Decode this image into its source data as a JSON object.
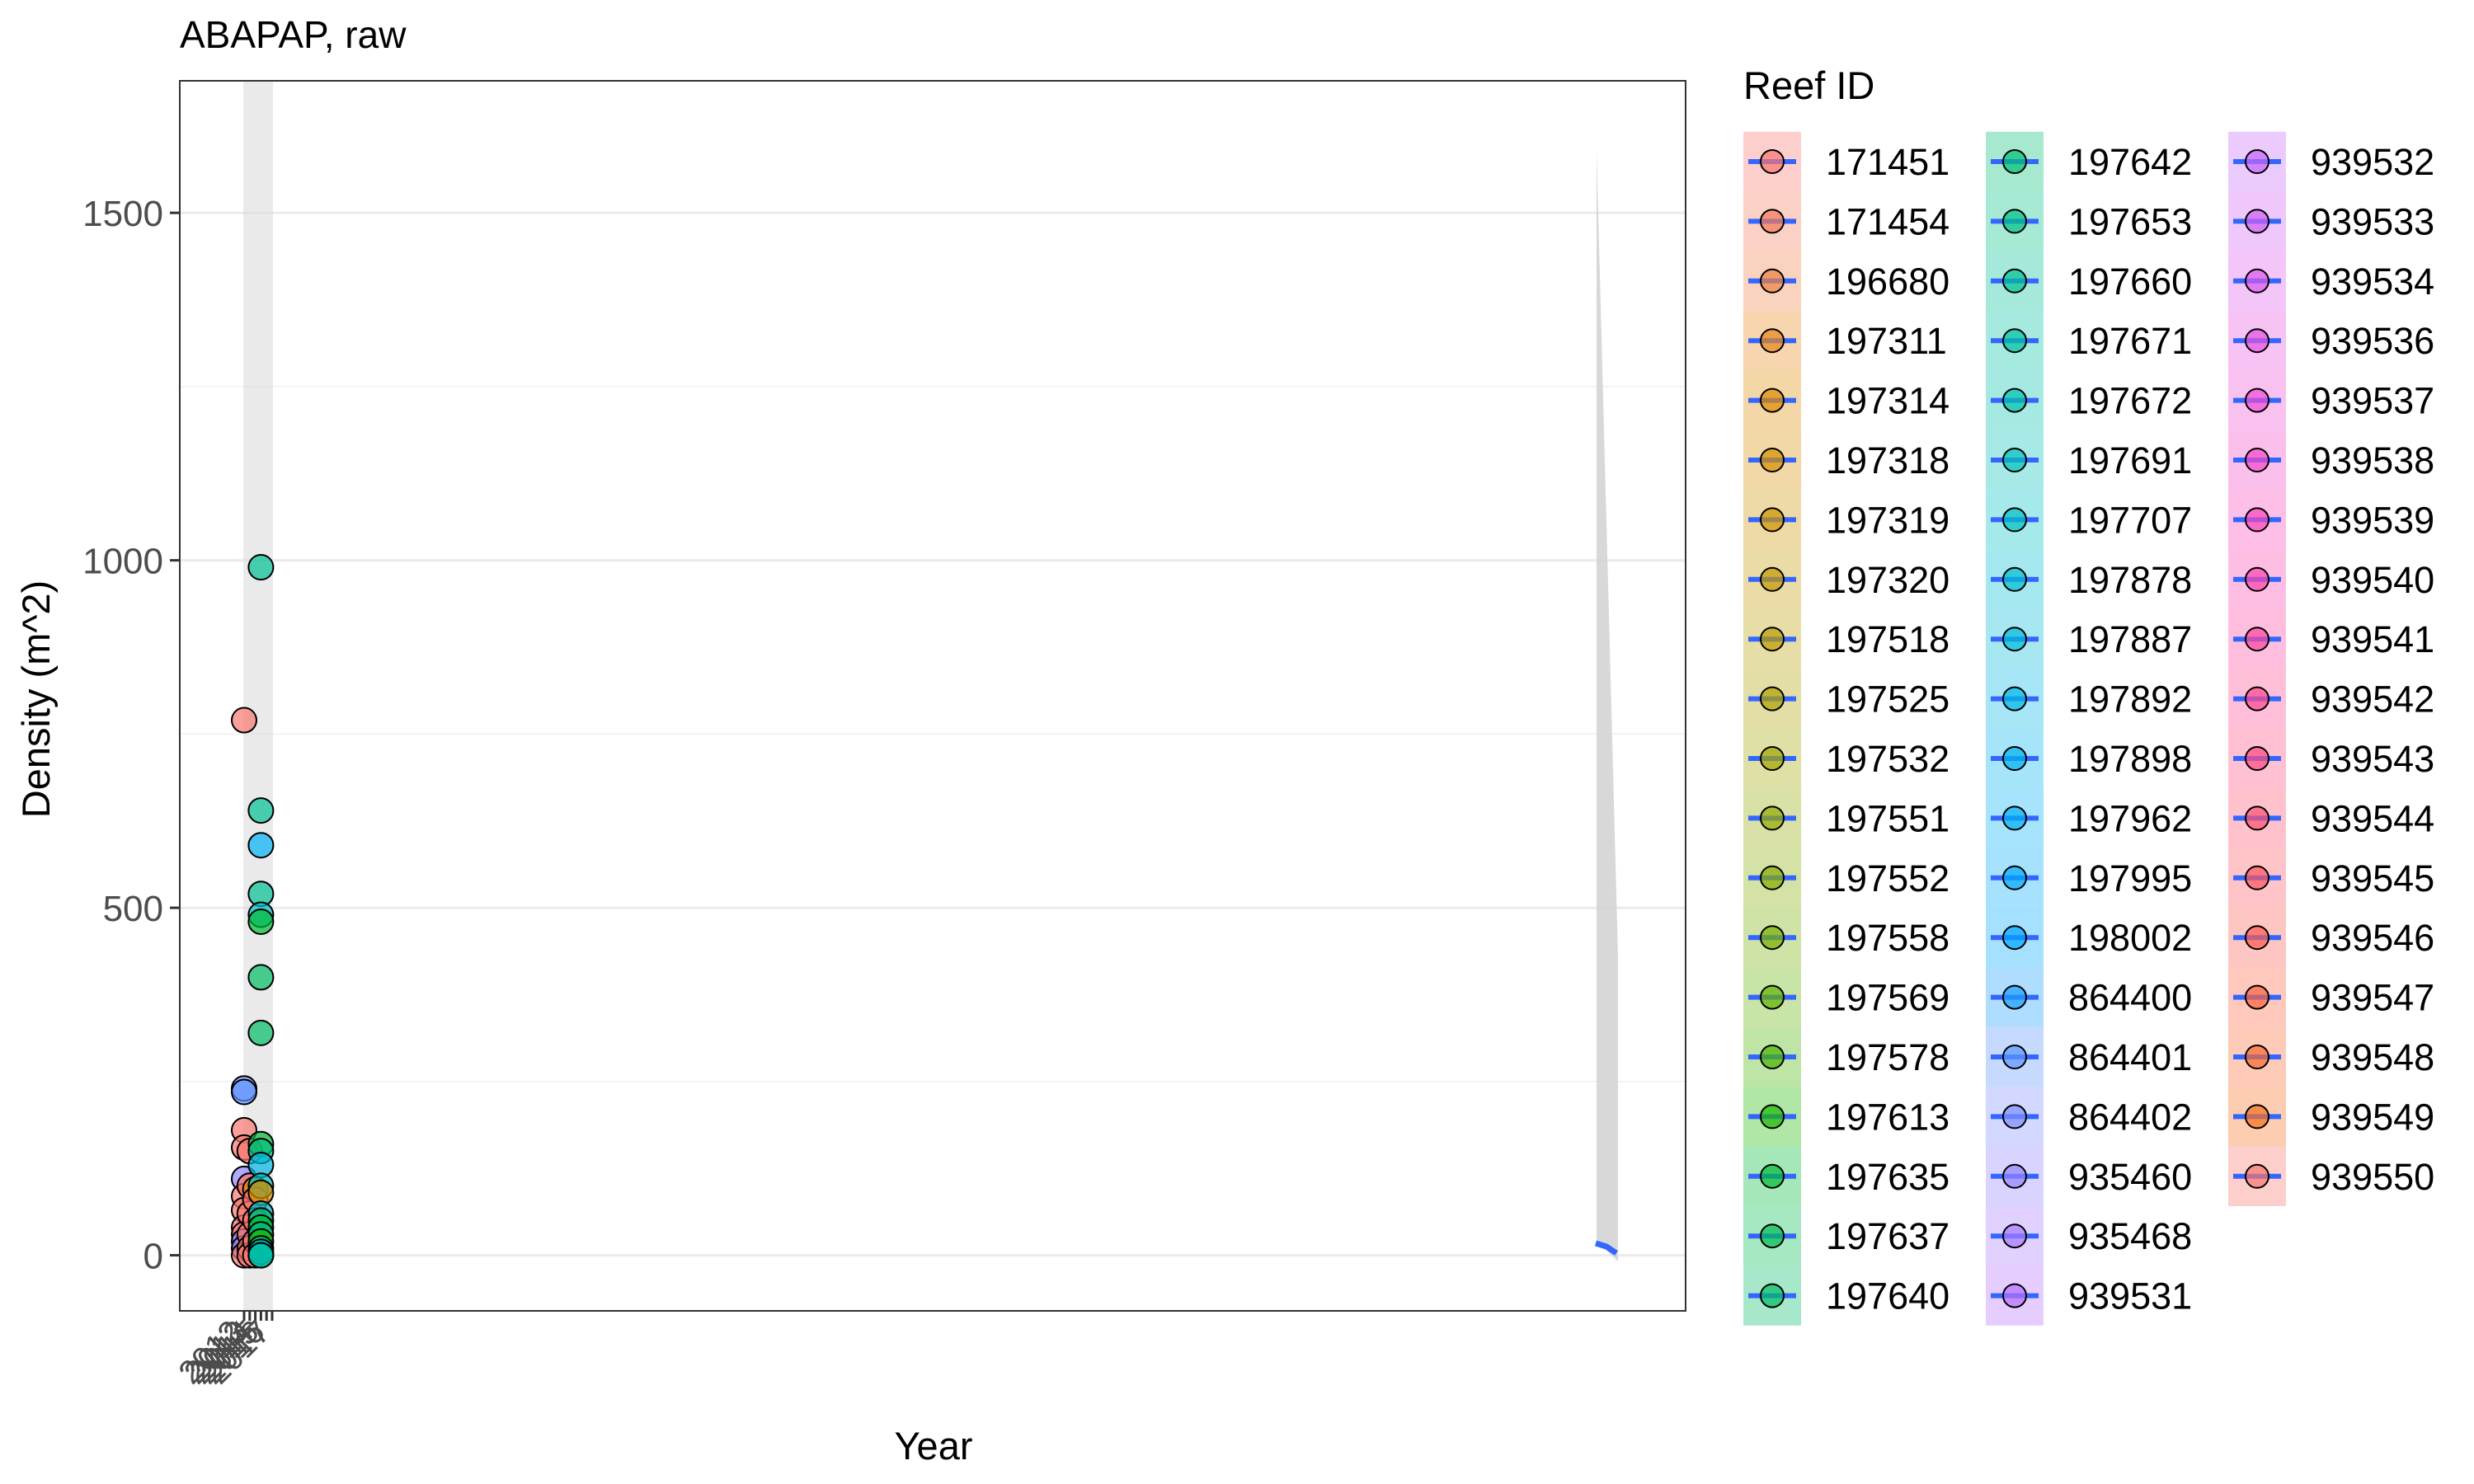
{
  "chart_data": {
    "type": "scatter",
    "title": "ABAPAP, raw",
    "xlabel": "Year",
    "ylabel": "Density (m^2)",
    "ylim": [
      -80,
      1690
    ],
    "y_ticks": [
      0,
      500,
      1000,
      1500
    ],
    "grid": true,
    "x_tick_labels": [
      "2012",
      "2013",
      "2014",
      "2015",
      "2016",
      "2017"
    ],
    "legend": {
      "title": "Reef ID",
      "placement": "right",
      "columns": 3,
      "line_color": "#3366FF",
      "entries": [
        {
          "id": "171451",
          "color": "#F8766D"
        },
        {
          "id": "171454",
          "color": "#F37B59"
        },
        {
          "id": "196680",
          "color": "#ED8141"
        },
        {
          "id": "197311",
          "color": "#E7861B"
        },
        {
          "id": "197314",
          "color": "#DF8B00"
        },
        {
          "id": "197318",
          "color": "#D89000"
        },
        {
          "id": "197319",
          "color": "#CF9400"
        },
        {
          "id": "197320",
          "color": "#C59900"
        },
        {
          "id": "197518",
          "color": "#BB9D00"
        },
        {
          "id": "197525",
          "color": "#B0A100"
        },
        {
          "id": "197532",
          "color": "#A3A500"
        },
        {
          "id": "197551",
          "color": "#96A900"
        },
        {
          "id": "197552",
          "color": "#87AC00"
        },
        {
          "id": "197558",
          "color": "#76AF00"
        },
        {
          "id": "197569",
          "color": "#62B200"
        },
        {
          "id": "197578",
          "color": "#49B500"
        },
        {
          "id": "197613",
          "color": "#1CB800"
        },
        {
          "id": "197635",
          "color": "#00BA38"
        },
        {
          "id": "197637",
          "color": "#00BC51"
        },
        {
          "id": "197640",
          "color": "#00BE65"
        },
        {
          "id": "197642",
          "color": "#00BF76"
        },
        {
          "id": "197653",
          "color": "#00C086"
        },
        {
          "id": "197660",
          "color": "#00C094"
        },
        {
          "id": "197671",
          "color": "#00C1A1"
        },
        {
          "id": "197672",
          "color": "#00C1AD"
        },
        {
          "id": "197691",
          "color": "#00C0B9"
        },
        {
          "id": "197707",
          "color": "#00BFC4"
        },
        {
          "id": "197878",
          "color": "#00BDD0"
        },
        {
          "id": "197887",
          "color": "#00BBDA"
        },
        {
          "id": "197892",
          "color": "#00B8E4"
        },
        {
          "id": "197898",
          "color": "#00B4EF"
        },
        {
          "id": "197962",
          "color": "#00B0F6"
        },
        {
          "id": "197995",
          "color": "#00ABFD"
        },
        {
          "id": "198002",
          "color": "#00A5FF"
        },
        {
          "id": "864400",
          "color": "#1A9EFF"
        },
        {
          "id": "864401",
          "color": "#5B96FF"
        },
        {
          "id": "864402",
          "color": "#7D8EFF"
        },
        {
          "id": "935460",
          "color": "#9385FF"
        },
        {
          "id": "935468",
          "color": "#A67BFF"
        },
        {
          "id": "939531",
          "color": "#B771FF"
        },
        {
          "id": "939532",
          "color": "#C567FA"
        },
        {
          "id": "939533",
          "color": "#D15FF3"
        },
        {
          "id": "939534",
          "color": "#DC58EA"
        },
        {
          "id": "939536",
          "color": "#E652E0"
        },
        {
          "id": "939537",
          "color": "#EE4DD5"
        },
        {
          "id": "939538",
          "color": "#F449C9"
        },
        {
          "id": "939539",
          "color": "#F946BC"
        },
        {
          "id": "939540",
          "color": "#FC45AE"
        },
        {
          "id": "939541",
          "color": "#FE46A0"
        },
        {
          "id": "939542",
          "color": "#FF4890"
        },
        {
          "id": "939543",
          "color": "#FF4B80"
        },
        {
          "id": "939544",
          "color": "#FF5070"
        },
        {
          "id": "939545",
          "color": "#FE555F"
        },
        {
          "id": "939546",
          "color": "#FC5B50"
        },
        {
          "id": "939547",
          "color": "#FB6240"
        },
        {
          "id": "939548",
          "color": "#F96A30"
        },
        {
          "id": "939549",
          "color": "#F8711F"
        },
        {
          "id": "939550",
          "color": "#F8766D"
        }
      ]
    },
    "points": [
      {
        "x": 2012,
        "y": 770,
        "color": "#F8766D"
      },
      {
        "x": 2012,
        "y": 240,
        "color": "#7D8EFF"
      },
      {
        "x": 2012,
        "y": 235,
        "color": "#5B96FF"
      },
      {
        "x": 2012,
        "y": 180,
        "color": "#F8766D"
      },
      {
        "x": 2012,
        "y": 155,
        "color": "#F8766D"
      },
      {
        "x": 2012,
        "y": 110,
        "color": "#9385FF"
      },
      {
        "x": 2012,
        "y": 85,
        "color": "#F8766D"
      },
      {
        "x": 2012,
        "y": 65,
        "color": "#F8766D"
      },
      {
        "x": 2012,
        "y": 40,
        "color": "#F8766D"
      },
      {
        "x": 2012,
        "y": 30,
        "color": "#F8766D"
      },
      {
        "x": 2012,
        "y": 20,
        "color": "#7D8EFF"
      },
      {
        "x": 2012,
        "y": 10,
        "color": "#9385FF"
      },
      {
        "x": 2012,
        "y": 0,
        "color": "#F8766D"
      },
      {
        "x": 2013,
        "y": 150,
        "color": "#F8766D"
      },
      {
        "x": 2013,
        "y": 100,
        "color": "#F8766D"
      },
      {
        "x": 2013,
        "y": 60,
        "color": "#F8766D"
      },
      {
        "x": 2013,
        "y": 30,
        "color": "#F8766D"
      },
      {
        "x": 2013,
        "y": 10,
        "color": "#F8766D"
      },
      {
        "x": 2013,
        "y": 0,
        "color": "#F8766D"
      },
      {
        "x": 2014,
        "y": 95,
        "color": "#DF8B00"
      },
      {
        "x": 2014,
        "y": 80,
        "color": "#F8766D"
      },
      {
        "x": 2014,
        "y": 50,
        "color": "#F8766D"
      },
      {
        "x": 2014,
        "y": 20,
        "color": "#F8766D"
      },
      {
        "x": 2014,
        "y": 0,
        "color": "#F8766D"
      },
      {
        "x": 2015,
        "y": 990,
        "color": "#00C094"
      },
      {
        "x": 2015,
        "y": 640,
        "color": "#00C094"
      },
      {
        "x": 2015,
        "y": 590,
        "color": "#00B0F6"
      },
      {
        "x": 2015,
        "y": 520,
        "color": "#00C094"
      },
      {
        "x": 2015,
        "y": 490,
        "color": "#00BFC4"
      },
      {
        "x": 2015,
        "y": 480,
        "color": "#00BA38"
      },
      {
        "x": 2015,
        "y": 400,
        "color": "#00BE65"
      },
      {
        "x": 2015,
        "y": 320,
        "color": "#00BE65"
      },
      {
        "x": 2015,
        "y": 160,
        "color": "#00BA38"
      },
      {
        "x": 2015,
        "y": 150,
        "color": "#00C086"
      },
      {
        "x": 2015,
        "y": 130,
        "color": "#00B8E4"
      },
      {
        "x": 2015,
        "y": 100,
        "color": "#00BFC4"
      },
      {
        "x": 2015,
        "y": 90,
        "color": "#D89000"
      },
      {
        "x": 2015,
        "y": 60,
        "color": "#00BDD0"
      },
      {
        "x": 2015,
        "y": 50,
        "color": "#00BE65"
      },
      {
        "x": 2015,
        "y": 40,
        "color": "#00BA38"
      },
      {
        "x": 2015,
        "y": 30,
        "color": "#00C086"
      },
      {
        "x": 2015,
        "y": 20,
        "color": "#1CB800"
      },
      {
        "x": 2015,
        "y": 10,
        "color": "#00BE65"
      },
      {
        "x": 2015,
        "y": 5,
        "color": "#00B4EF"
      },
      {
        "x": 2015,
        "y": 0,
        "color": "#00BA38"
      },
      {
        "x": 2015,
        "y": 0,
        "color": "#00BFC4"
      }
    ]
  }
}
